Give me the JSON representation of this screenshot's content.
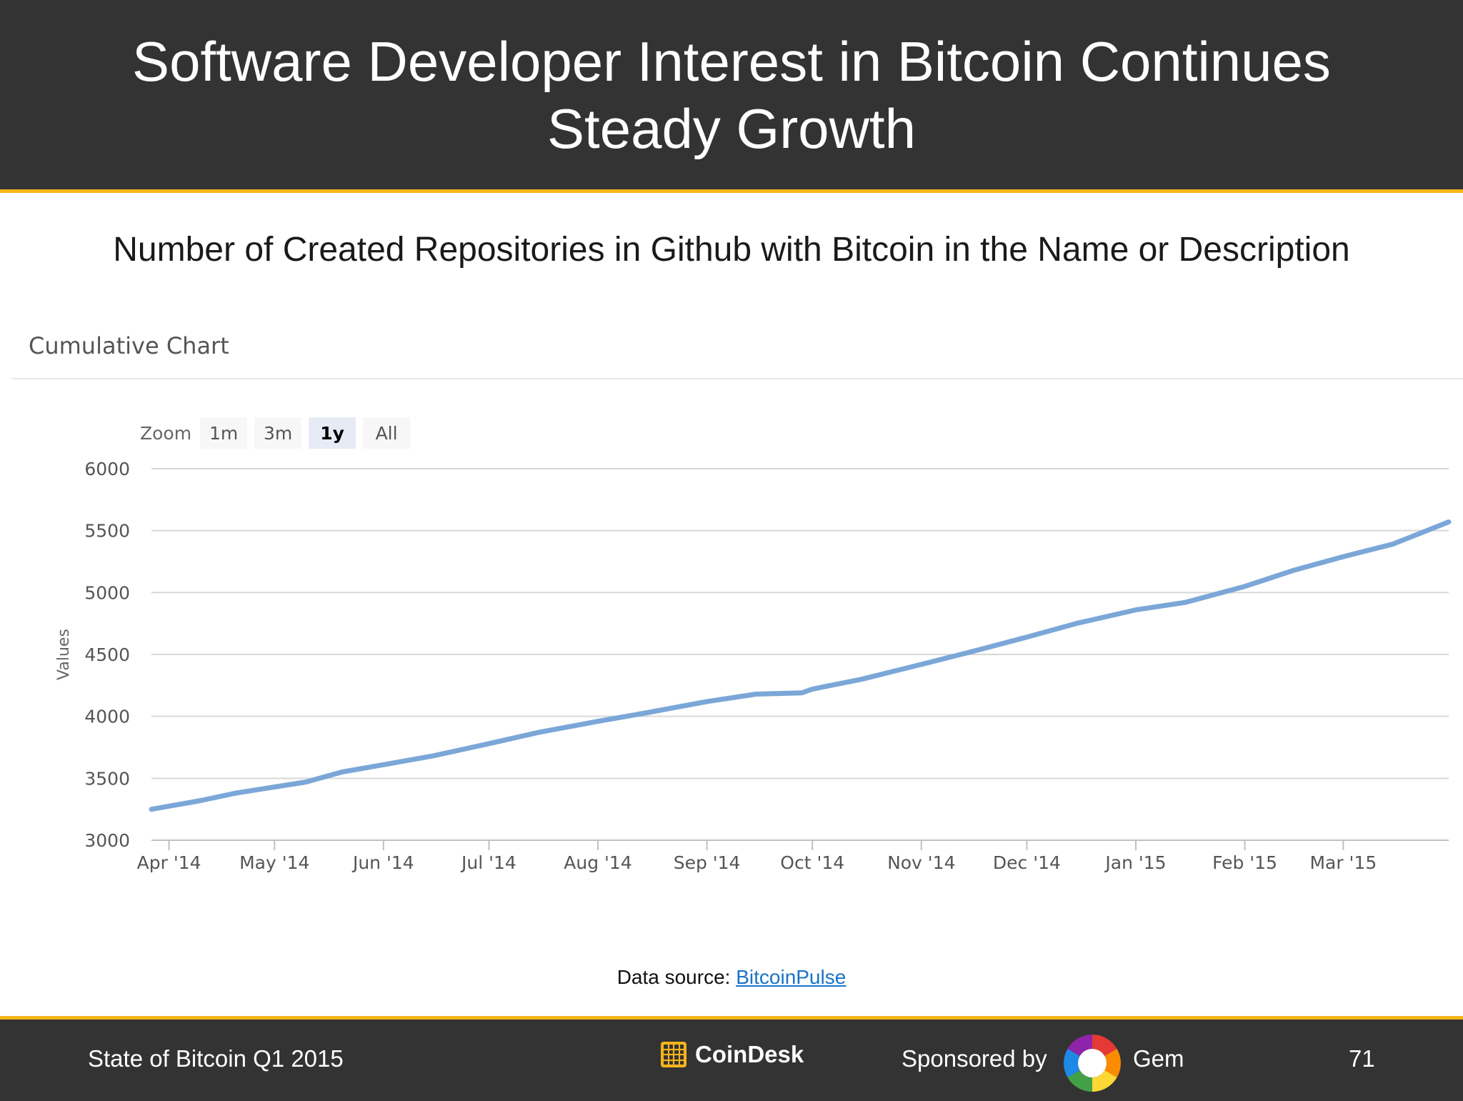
{
  "header": {
    "title": "Software Developer Interest in Bitcoin Continues Steady Growth"
  },
  "subtitle": "Number of Created Repositories in Github with Bitcoin in the Name or Description",
  "chart_header": "Cumulative Chart",
  "zoom": {
    "label": "Zoom",
    "buttons": [
      "1m",
      "3m",
      "1y",
      "All"
    ],
    "active": "1y"
  },
  "source": {
    "prefix": "Data source: ",
    "link_text": "BitcoinPulse"
  },
  "footer": {
    "left": "State of Bitcoin Q1 2015",
    "brand": "CoinDesk",
    "sponsor_label": "Sponsored by",
    "sponsor_name": "Gem",
    "page_number": "71"
  },
  "colors": {
    "header_bg": "#333333",
    "accent": "#f4b41a",
    "line": "#7ba7d8",
    "link": "#1a73c8"
  },
  "icons": [
    "coindesk-logo-icon",
    "gem-logo-icon"
  ],
  "chart_data": {
    "type": "line",
    "title": "",
    "xlabel": "",
    "ylabel": "Values",
    "ylim": [
      3000,
      6000
    ],
    "yticks": [
      3000,
      3500,
      4000,
      4500,
      5000,
      5500,
      6000
    ],
    "xticks": [
      {
        "date": "2014-04-01",
        "label": "Apr '14"
      },
      {
        "date": "2014-05-01",
        "label": "May '14"
      },
      {
        "date": "2014-06-01",
        "label": "Jun '14"
      },
      {
        "date": "2014-07-01",
        "label": "Jul '14"
      },
      {
        "date": "2014-08-01",
        "label": "Aug '14"
      },
      {
        "date": "2014-09-01",
        "label": "Sep '14"
      },
      {
        "date": "2014-10-01",
        "label": "Oct '14"
      },
      {
        "date": "2014-11-01",
        "label": "Nov '14"
      },
      {
        "date": "2014-12-01",
        "label": "Dec '14"
      },
      {
        "date": "2015-01-01",
        "label": "Jan '15"
      },
      {
        "date": "2015-02-01",
        "label": "Feb '15"
      },
      {
        "date": "2015-03-01",
        "label": "Mar '15"
      }
    ],
    "xlim": [
      "2014-03-27",
      "2015-03-31"
    ],
    "grid": true,
    "legend": "none",
    "series": [
      {
        "values": [
          {
            "x": "2014-03-27",
            "y": 3250
          },
          {
            "x": "2014-04-10",
            "y": 3320
          },
          {
            "x": "2014-04-20",
            "y": 3380
          },
          {
            "x": "2014-05-01",
            "y": 3430
          },
          {
            "x": "2014-05-10",
            "y": 3470
          },
          {
            "x": "2014-05-20",
            "y": 3550
          },
          {
            "x": "2014-06-01",
            "y": 3610
          },
          {
            "x": "2014-06-15",
            "y": 3680
          },
          {
            "x": "2014-07-01",
            "y": 3780
          },
          {
            "x": "2014-07-15",
            "y": 3870
          },
          {
            "x": "2014-08-01",
            "y": 3960
          },
          {
            "x": "2014-08-15",
            "y": 4030
          },
          {
            "x": "2014-09-01",
            "y": 4120
          },
          {
            "x": "2014-09-15",
            "y": 4180
          },
          {
            "x": "2014-09-28",
            "y": 4190
          },
          {
            "x": "2014-10-01",
            "y": 4220
          },
          {
            "x": "2014-10-15",
            "y": 4300
          },
          {
            "x": "2014-11-01",
            "y": 4420
          },
          {
            "x": "2014-11-15",
            "y": 4520
          },
          {
            "x": "2014-12-01",
            "y": 4640
          },
          {
            "x": "2014-12-15",
            "y": 4750
          },
          {
            "x": "2015-01-01",
            "y": 4860
          },
          {
            "x": "2015-01-15",
            "y": 4920
          },
          {
            "x": "2015-02-01",
            "y": 5050
          },
          {
            "x": "2015-02-15",
            "y": 5180
          },
          {
            "x": "2015-03-01",
            "y": 5290
          },
          {
            "x": "2015-03-15",
            "y": 5390
          },
          {
            "x": "2015-03-31",
            "y": 5570
          }
        ]
      }
    ]
  }
}
